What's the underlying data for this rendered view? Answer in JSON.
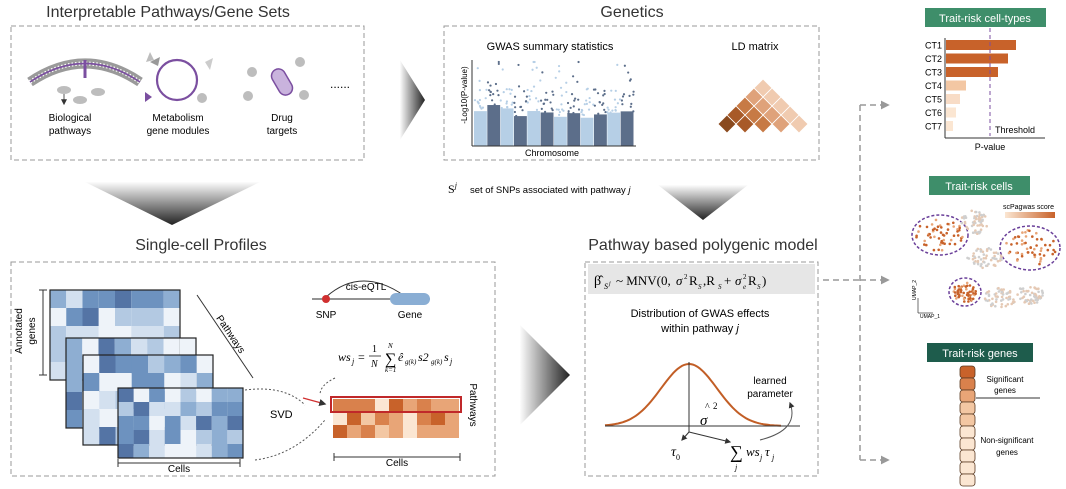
{
  "sections": {
    "pathways_title": "Interpretable Pathways/Gene Sets",
    "genetics_title": "Genetics",
    "singlecell_title": "Single-cell Profiles",
    "model_title": "Pathway based polygenic model"
  },
  "pathways": {
    "bio_line1": "Biological",
    "bio_line2": "pathways",
    "meta_line1": "Metabolism",
    "meta_line2": "gene modules",
    "drug_line1": "Drug",
    "drug_line2": "targets",
    "ellipsis": "......"
  },
  "genetics": {
    "gwas_title": "GWAS summary statistics",
    "ld_title": "LD matrix",
    "ylabel": "-Log10(P-value)",
    "xlabel": "Chromosome",
    "snp_set_sym": "S",
    "snp_set_sup": "j",
    "snp_set_text": "set of SNPs associated with pathway",
    "snp_set_j": "j"
  },
  "singlecell": {
    "annotated_genes_1": "Annotated",
    "annotated_genes_2": "genes",
    "pathways_label": "Pathways",
    "cells_label": "Cells",
    "svd_label": "SVD",
    "cis_eqtl": "cis-eQTL",
    "snp_label": "SNP",
    "gene_label": "Gene",
    "pathways_label2": "Pathways",
    "cells_label2": "Cells"
  },
  "model": {
    "dist_line1": "Distribution of GWAS effects",
    "dist_line2": "within pathway",
    "dist_j": "j",
    "learned_1": "learned",
    "learned_2": "parameter",
    "sigma": "σ",
    "hat": "^",
    "sq": "2",
    "tau0": "τ",
    "tau0_sub": "0"
  },
  "celltypes": {
    "title": "Trait-risk cell-types",
    "labels": [
      "CT1",
      "CT2",
      "CT3",
      "CT4",
      "CT5",
      "CT6",
      "CT7"
    ],
    "threshold": "Threshold",
    "xlabel": "P-value"
  },
  "cells": {
    "title": "Trait-risk cells",
    "score_label": "scPagwas score",
    "umap1": "UMAP_1",
    "umap2": "UMAP_2"
  },
  "genes": {
    "title": "Trait-risk genes",
    "significant_1": "Significant",
    "significant_2": "genes",
    "nonsig_1": "Non-significant",
    "nonsig_2": "genes"
  },
  "colors": {
    "accent_green": "#3e8e6a",
    "dark_green": "#1e5c4c",
    "orange": "#c8622a",
    "blue_light": "#b6cfe6",
    "blue_dark": "#5c6e8a"
  }
}
